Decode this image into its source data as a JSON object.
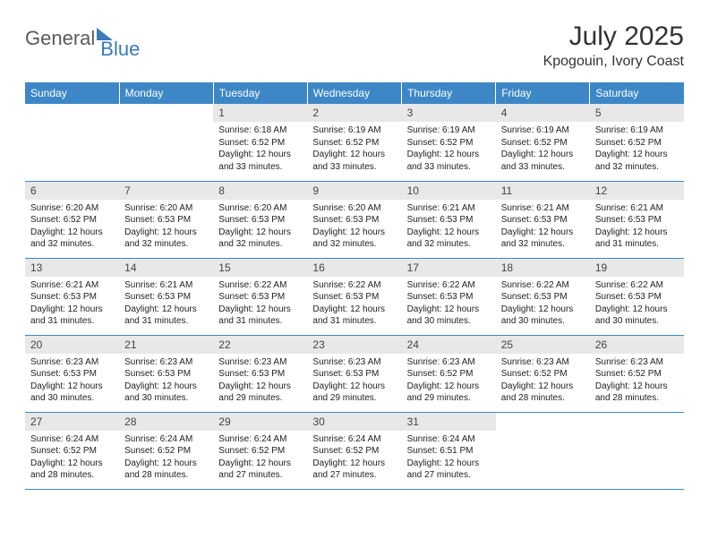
{
  "logo": {
    "part1": "General",
    "part2": "Blue"
  },
  "title": "July 2025",
  "location": "Kpogouin, Ivory Coast",
  "colors": {
    "header_bg": "#3d87c7",
    "header_text": "#ffffff",
    "daynum_bg": "#e8e8e8",
    "text": "#222222",
    "logo_blue": "#3a7ab8"
  },
  "day_headers": [
    "Sunday",
    "Monday",
    "Tuesday",
    "Wednesday",
    "Thursday",
    "Friday",
    "Saturday"
  ],
  "weeks": [
    [
      null,
      null,
      {
        "n": "1",
        "sunrise": "6:18 AM",
        "sunset": "6:52 PM",
        "dl": "12 hours and 33 minutes."
      },
      {
        "n": "2",
        "sunrise": "6:19 AM",
        "sunset": "6:52 PM",
        "dl": "12 hours and 33 minutes."
      },
      {
        "n": "3",
        "sunrise": "6:19 AM",
        "sunset": "6:52 PM",
        "dl": "12 hours and 33 minutes."
      },
      {
        "n": "4",
        "sunrise": "6:19 AM",
        "sunset": "6:52 PM",
        "dl": "12 hours and 33 minutes."
      },
      {
        "n": "5",
        "sunrise": "6:19 AM",
        "sunset": "6:52 PM",
        "dl": "12 hours and 32 minutes."
      }
    ],
    [
      {
        "n": "6",
        "sunrise": "6:20 AM",
        "sunset": "6:52 PM",
        "dl": "12 hours and 32 minutes."
      },
      {
        "n": "7",
        "sunrise": "6:20 AM",
        "sunset": "6:53 PM",
        "dl": "12 hours and 32 minutes."
      },
      {
        "n": "8",
        "sunrise": "6:20 AM",
        "sunset": "6:53 PM",
        "dl": "12 hours and 32 minutes."
      },
      {
        "n": "9",
        "sunrise": "6:20 AM",
        "sunset": "6:53 PM",
        "dl": "12 hours and 32 minutes."
      },
      {
        "n": "10",
        "sunrise": "6:21 AM",
        "sunset": "6:53 PM",
        "dl": "12 hours and 32 minutes."
      },
      {
        "n": "11",
        "sunrise": "6:21 AM",
        "sunset": "6:53 PM",
        "dl": "12 hours and 32 minutes."
      },
      {
        "n": "12",
        "sunrise": "6:21 AM",
        "sunset": "6:53 PM",
        "dl": "12 hours and 31 minutes."
      }
    ],
    [
      {
        "n": "13",
        "sunrise": "6:21 AM",
        "sunset": "6:53 PM",
        "dl": "12 hours and 31 minutes."
      },
      {
        "n": "14",
        "sunrise": "6:21 AM",
        "sunset": "6:53 PM",
        "dl": "12 hours and 31 minutes."
      },
      {
        "n": "15",
        "sunrise": "6:22 AM",
        "sunset": "6:53 PM",
        "dl": "12 hours and 31 minutes."
      },
      {
        "n": "16",
        "sunrise": "6:22 AM",
        "sunset": "6:53 PM",
        "dl": "12 hours and 31 minutes."
      },
      {
        "n": "17",
        "sunrise": "6:22 AM",
        "sunset": "6:53 PM",
        "dl": "12 hours and 30 minutes."
      },
      {
        "n": "18",
        "sunrise": "6:22 AM",
        "sunset": "6:53 PM",
        "dl": "12 hours and 30 minutes."
      },
      {
        "n": "19",
        "sunrise": "6:22 AM",
        "sunset": "6:53 PM",
        "dl": "12 hours and 30 minutes."
      }
    ],
    [
      {
        "n": "20",
        "sunrise": "6:23 AM",
        "sunset": "6:53 PM",
        "dl": "12 hours and 30 minutes."
      },
      {
        "n": "21",
        "sunrise": "6:23 AM",
        "sunset": "6:53 PM",
        "dl": "12 hours and 30 minutes."
      },
      {
        "n": "22",
        "sunrise": "6:23 AM",
        "sunset": "6:53 PM",
        "dl": "12 hours and 29 minutes."
      },
      {
        "n": "23",
        "sunrise": "6:23 AM",
        "sunset": "6:53 PM",
        "dl": "12 hours and 29 minutes."
      },
      {
        "n": "24",
        "sunrise": "6:23 AM",
        "sunset": "6:52 PM",
        "dl": "12 hours and 29 minutes."
      },
      {
        "n": "25",
        "sunrise": "6:23 AM",
        "sunset": "6:52 PM",
        "dl": "12 hours and 28 minutes."
      },
      {
        "n": "26",
        "sunrise": "6:23 AM",
        "sunset": "6:52 PM",
        "dl": "12 hours and 28 minutes."
      }
    ],
    [
      {
        "n": "27",
        "sunrise": "6:24 AM",
        "sunset": "6:52 PM",
        "dl": "12 hours and 28 minutes."
      },
      {
        "n": "28",
        "sunrise": "6:24 AM",
        "sunset": "6:52 PM",
        "dl": "12 hours and 28 minutes."
      },
      {
        "n": "29",
        "sunrise": "6:24 AM",
        "sunset": "6:52 PM",
        "dl": "12 hours and 27 minutes."
      },
      {
        "n": "30",
        "sunrise": "6:24 AM",
        "sunset": "6:52 PM",
        "dl": "12 hours and 27 minutes."
      },
      {
        "n": "31",
        "sunrise": "6:24 AM",
        "sunset": "6:51 PM",
        "dl": "12 hours and 27 minutes."
      },
      null,
      null
    ]
  ],
  "labels": {
    "sunrise": "Sunrise: ",
    "sunset": "Sunset: ",
    "daylight": "Daylight: "
  }
}
